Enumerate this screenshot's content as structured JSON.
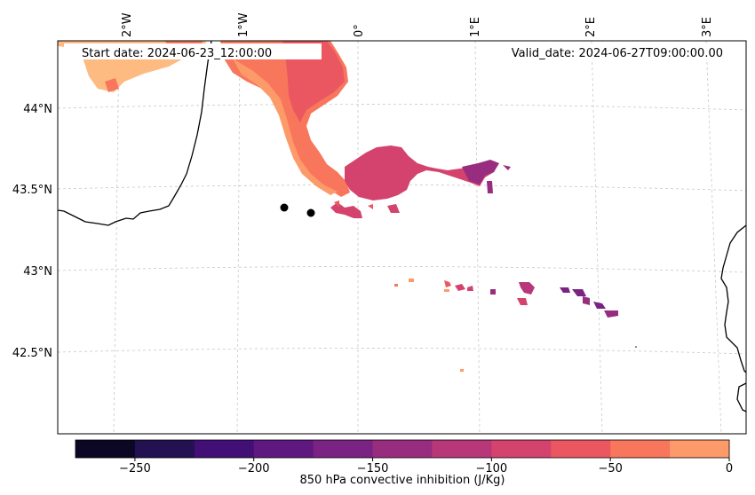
{
  "header": {
    "start_label": "Start date: 2024-06-23_12:00:00",
    "valid_label": "Valid_date: 2024-06-27T09:00:00.00"
  },
  "map": {
    "lon_labels": [
      "2°W",
      "1°W",
      "0°",
      "1°E",
      "2°E",
      "3°E"
    ],
    "lat_labels": [
      "44°N",
      "43.5°N",
      "43°N",
      "42.5°N"
    ],
    "station_markers": 2
  },
  "colorbar": {
    "label": "850 hPa convective inhibition (J/Kg)",
    "ticks": [
      "−250",
      "−200",
      "−150",
      "−100",
      "−50",
      "0"
    ],
    "bins": [
      -275,
      -250,
      -225,
      -200,
      -175,
      -150,
      -125,
      -100,
      -75,
      -50,
      -25,
      0
    ],
    "colors": [
      "#0b0724",
      "#231151",
      "#410f75",
      "#5f187f",
      "#7b2382",
      "#982d80",
      "#b73779",
      "#d3436e",
      "#eb5760",
      "#f8765c",
      "#fd9a6a",
      "#febb81",
      "#fddc9e"
    ]
  }
}
